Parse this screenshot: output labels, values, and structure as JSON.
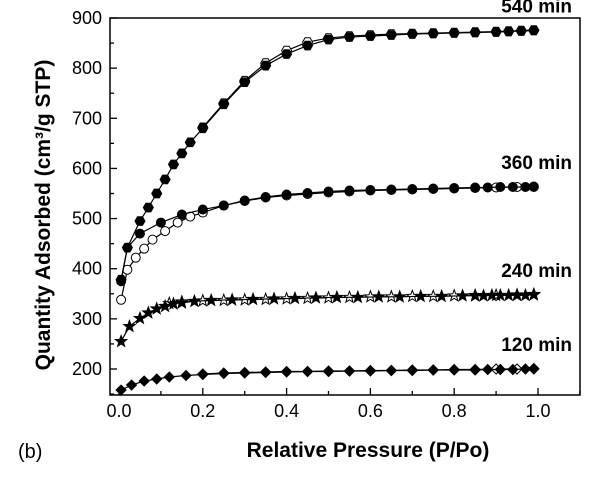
{
  "panel_label": "(b)",
  "chart_data": {
    "type": "line",
    "xlabel": "Relative Pressure (P/Po)",
    "ylabel": "Quantity Adsorbed (cm³/g STP)",
    "xlim": [
      0.0,
      1.1
    ],
    "ylim": [
      150,
      900
    ],
    "xticks": [
      "0.0",
      "0.2",
      "0.4",
      "0.6",
      "0.8",
      "1.0"
    ],
    "yticks": [
      "200",
      "300",
      "400",
      "500",
      "600",
      "700",
      "800",
      "900"
    ],
    "grid": false,
    "series": [
      {
        "name": "540 min",
        "marker": "hexagon",
        "adsorption": [
          [
            0.005,
            378
          ],
          [
            0.02,
            442
          ],
          [
            0.05,
            495
          ],
          [
            0.07,
            522
          ],
          [
            0.09,
            550
          ],
          [
            0.11,
            578
          ],
          [
            0.13,
            608
          ],
          [
            0.15,
            630
          ],
          [
            0.17,
            652
          ],
          [
            0.2,
            680
          ],
          [
            0.25,
            728
          ],
          [
            0.3,
            772
          ],
          [
            0.35,
            805
          ],
          [
            0.4,
            828
          ],
          [
            0.45,
            845
          ],
          [
            0.5,
            857
          ],
          [
            0.55,
            862
          ],
          [
            0.6,
            864
          ],
          [
            0.65,
            866
          ],
          [
            0.7,
            868
          ],
          [
            0.75,
            869
          ],
          [
            0.8,
            870
          ],
          [
            0.85,
            871
          ],
          [
            0.9,
            872
          ],
          [
            0.93,
            873
          ],
          [
            0.96,
            874
          ],
          [
            0.99,
            875
          ]
        ],
        "desorption": [
          [
            0.99,
            876
          ],
          [
            0.96,
            875
          ],
          [
            0.93,
            874
          ],
          [
            0.9,
            873
          ],
          [
            0.85,
            872
          ],
          [
            0.8,
            871
          ],
          [
            0.75,
            870
          ],
          [
            0.7,
            869
          ],
          [
            0.65,
            868
          ],
          [
            0.6,
            866
          ],
          [
            0.55,
            864
          ],
          [
            0.5,
            860
          ],
          [
            0.45,
            852
          ],
          [
            0.4,
            835
          ],
          [
            0.35,
            810
          ],
          [
            0.3,
            775
          ],
          [
            0.25,
            730
          ],
          [
            0.2,
            682
          ]
        ]
      },
      {
        "name": "360 min",
        "marker": "circle",
        "adsorption": [
          [
            0.005,
            375
          ],
          [
            0.02,
            442
          ],
          [
            0.05,
            470
          ],
          [
            0.1,
            492
          ],
          [
            0.15,
            508
          ],
          [
            0.2,
            518
          ],
          [
            0.25,
            526
          ],
          [
            0.3,
            536
          ],
          [
            0.35,
            543
          ],
          [
            0.4,
            548
          ],
          [
            0.45,
            551
          ],
          [
            0.5,
            554
          ],
          [
            0.55,
            556
          ],
          [
            0.6,
            557
          ],
          [
            0.65,
            558
          ],
          [
            0.7,
            559
          ],
          [
            0.75,
            560
          ],
          [
            0.8,
            561
          ],
          [
            0.85,
            562
          ],
          [
            0.88,
            562
          ],
          [
            0.91,
            563
          ],
          [
            0.94,
            563
          ],
          [
            0.97,
            563
          ],
          [
            0.99,
            563
          ]
        ],
        "desorption": [
          [
            0.99,
            564
          ],
          [
            0.95,
            563
          ],
          [
            0.9,
            562
          ],
          [
            0.85,
            561
          ],
          [
            0.8,
            560
          ],
          [
            0.75,
            559
          ],
          [
            0.7,
            558
          ],
          [
            0.65,
            557
          ],
          [
            0.6,
            556
          ],
          [
            0.55,
            554
          ],
          [
            0.5,
            552
          ],
          [
            0.45,
            549
          ],
          [
            0.4,
            546
          ],
          [
            0.35,
            542
          ],
          [
            0.3,
            535
          ],
          [
            0.25,
            526
          ],
          [
            0.2,
            512
          ],
          [
            0.17,
            504
          ],
          [
            0.14,
            492
          ],
          [
            0.11,
            475
          ],
          [
            0.08,
            458
          ],
          [
            0.06,
            440
          ],
          [
            0.04,
            422
          ],
          [
            0.02,
            398
          ],
          [
            0.005,
            338
          ]
        ]
      },
      {
        "name": "240 min",
        "marker": "star",
        "adsorption": [
          [
            0.005,
            255
          ],
          [
            0.025,
            285
          ],
          [
            0.05,
            301
          ],
          [
            0.07,
            312
          ],
          [
            0.09,
            320
          ],
          [
            0.11,
            325
          ],
          [
            0.13,
            330
          ],
          [
            0.15,
            332
          ],
          [
            0.18,
            335
          ],
          [
            0.22,
            337
          ],
          [
            0.27,
            338
          ],
          [
            0.32,
            339
          ],
          [
            0.37,
            340
          ],
          [
            0.42,
            341
          ],
          [
            0.47,
            342
          ],
          [
            0.52,
            343
          ],
          [
            0.57,
            343
          ],
          [
            0.62,
            344
          ],
          [
            0.67,
            344
          ],
          [
            0.72,
            345
          ],
          [
            0.77,
            345
          ],
          [
            0.82,
            346
          ],
          [
            0.85,
            346
          ],
          [
            0.87,
            346
          ],
          [
            0.89,
            347
          ],
          [
            0.91,
            347
          ],
          [
            0.93,
            347
          ],
          [
            0.95,
            347
          ],
          [
            0.97,
            347
          ],
          [
            0.99,
            348
          ]
        ],
        "desorption": [
          [
            0.99,
            349
          ],
          [
            0.95,
            348
          ],
          [
            0.9,
            347
          ],
          [
            0.85,
            347
          ],
          [
            0.8,
            346
          ],
          [
            0.75,
            345
          ],
          [
            0.7,
            345
          ],
          [
            0.65,
            344
          ],
          [
            0.6,
            344
          ],
          [
            0.55,
            343
          ],
          [
            0.5,
            342
          ],
          [
            0.45,
            341
          ],
          [
            0.4,
            340
          ],
          [
            0.35,
            339
          ],
          [
            0.3,
            338
          ],
          [
            0.25,
            337
          ],
          [
            0.2,
            336
          ],
          [
            0.15,
            334
          ],
          [
            0.12,
            331
          ]
        ]
      },
      {
        "name": "120 min",
        "marker": "diamond",
        "adsorption": [
          [
            0.005,
            158
          ],
          [
            0.03,
            168
          ],
          [
            0.06,
            176
          ],
          [
            0.09,
            180
          ],
          [
            0.12,
            184
          ],
          [
            0.16,
            187
          ],
          [
            0.2,
            189
          ],
          [
            0.25,
            191
          ],
          [
            0.3,
            192
          ],
          [
            0.35,
            193
          ],
          [
            0.4,
            194
          ],
          [
            0.45,
            195
          ],
          [
            0.5,
            195
          ],
          [
            0.55,
            196
          ],
          [
            0.6,
            196
          ],
          [
            0.65,
            197
          ],
          [
            0.7,
            197
          ],
          [
            0.75,
            198
          ],
          [
            0.8,
            198
          ],
          [
            0.85,
            198
          ],
          [
            0.88,
            199
          ],
          [
            0.91,
            199
          ],
          [
            0.94,
            199
          ],
          [
            0.97,
            200
          ],
          [
            0.99,
            200
          ]
        ],
        "desorption": [
          [
            0.99,
            201
          ],
          [
            0.95,
            200
          ],
          [
            0.9,
            200
          ],
          [
            0.85,
            199
          ],
          [
            0.8,
            199
          ],
          [
            0.75,
            198
          ],
          [
            0.7,
            198
          ],
          [
            0.65,
            197
          ],
          [
            0.6,
            197
          ],
          [
            0.55,
            196
          ],
          [
            0.5,
            196
          ],
          [
            0.45,
            195
          ],
          [
            0.4,
            195
          ],
          [
            0.35,
            194
          ],
          [
            0.3,
            193
          ],
          [
            0.25,
            192
          ],
          [
            0.2,
            190
          ]
        ]
      }
    ]
  }
}
